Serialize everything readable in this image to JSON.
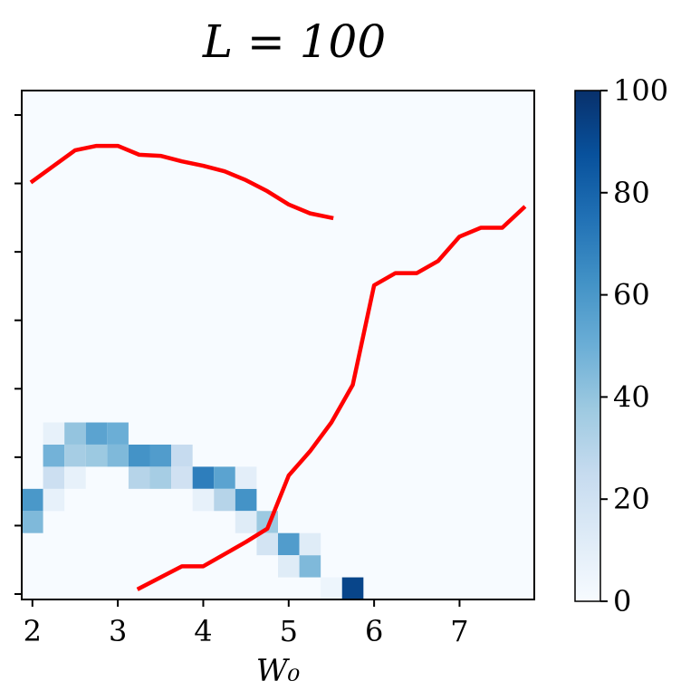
{
  "chart_data": {
    "type": "heatmap",
    "title": "L = 100",
    "xlabel": "W₀",
    "ylabel": "",
    "x_ticks": [
      2,
      3,
      4,
      5,
      6,
      7
    ],
    "x_tick_labels": [
      "2",
      "3",
      "4",
      "5",
      "6",
      "7"
    ],
    "xlim": [
      1.875,
      7.875
    ],
    "y_tick_count": 8,
    "grid_x": [
      2.0,
      2.25,
      2.5,
      2.75,
      3.0,
      3.25,
      3.5,
      3.75,
      4.0,
      4.25,
      4.5,
      4.75,
      5.0,
      5.25,
      5.5,
      5.75,
      6.0,
      6.25,
      6.5,
      6.75,
      7.0,
      7.25,
      7.5,
      7.75
    ],
    "grid_rows": 23,
    "colorbar": {
      "range": [
        0,
        100
      ],
      "ticks": [
        0,
        20,
        40,
        60,
        80,
        100
      ],
      "tick_labels": [
        "0",
        "20",
        "40",
        "60",
        "80",
        "100"
      ],
      "colormap": "Blues"
    },
    "cells": [
      {
        "x": 2.0,
        "row": 3,
        "value": 45
      },
      {
        "x": 2.0,
        "row": 4,
        "value": 60
      },
      {
        "x": 2.25,
        "row": 4,
        "value": 8
      },
      {
        "x": 2.25,
        "row": 5,
        "value": 22
      },
      {
        "x": 2.25,
        "row": 6,
        "value": 48
      },
      {
        "x": 2.25,
        "row": 7,
        "value": 8
      },
      {
        "x": 2.5,
        "row": 6,
        "value": 35
      },
      {
        "x": 2.5,
        "row": 7,
        "value": 40
      },
      {
        "x": 2.5,
        "row": 5,
        "value": 8
      },
      {
        "x": 2.75,
        "row": 7,
        "value": 55
      },
      {
        "x": 2.75,
        "row": 6,
        "value": 38
      },
      {
        "x": 3.0,
        "row": 7,
        "value": 50
      },
      {
        "x": 3.0,
        "row": 6,
        "value": 45
      },
      {
        "x": 3.25,
        "row": 6,
        "value": 62
      },
      {
        "x": 3.25,
        "row": 5,
        "value": 30
      },
      {
        "x": 3.5,
        "row": 6,
        "value": 58
      },
      {
        "x": 3.5,
        "row": 5,
        "value": 35
      },
      {
        "x": 3.75,
        "row": 6,
        "value": 25
      },
      {
        "x": 3.75,
        "row": 5,
        "value": 20
      },
      {
        "x": 4.0,
        "row": 5,
        "value": 70
      },
      {
        "x": 4.0,
        "row": 4,
        "value": 8
      },
      {
        "x": 4.25,
        "row": 5,
        "value": 55
      },
      {
        "x": 4.25,
        "row": 4,
        "value": 30
      },
      {
        "x": 4.5,
        "row": 4,
        "value": 62
      },
      {
        "x": 4.5,
        "row": 5,
        "value": 10
      },
      {
        "x": 4.5,
        "row": 3,
        "value": 12
      },
      {
        "x": 4.75,
        "row": 3,
        "value": 38
      },
      {
        "x": 4.75,
        "row": 2,
        "value": 18
      },
      {
        "x": 5.0,
        "row": 2,
        "value": 58
      },
      {
        "x": 5.0,
        "row": 1,
        "value": 12
      },
      {
        "x": 5.25,
        "row": 1,
        "value": 45
      },
      {
        "x": 5.25,
        "row": 2,
        "value": 12
      },
      {
        "x": 5.5,
        "row": 0,
        "value": 5
      },
      {
        "x": 5.75,
        "row": 0,
        "value": 92
      }
    ],
    "series": [
      {
        "x": [
          2.0,
          2.25,
          2.5,
          2.75,
          3.0,
          3.25,
          3.5,
          3.75,
          4.0,
          4.25,
          4.5,
          4.75,
          5.0,
          5.25,
          5.5
        ],
        "y": [
          18.9,
          19.6,
          20.3,
          20.5,
          20.5,
          20.1,
          20.05,
          19.8,
          19.6,
          19.35,
          18.95,
          18.45,
          17.85,
          17.45,
          17.25
        ],
        "color": "#ff0000"
      },
      {
        "x": [
          3.25,
          3.75,
          4.0,
          4.5,
          4.75,
          5.0,
          5.25,
          5.5,
          5.75,
          6.0,
          6.25,
          6.5,
          6.75,
          7.0,
          7.25,
          7.5,
          7.75
        ],
        "y": [
          0.5,
          1.5,
          1.5,
          2.6,
          3.2,
          5.6,
          6.7,
          8.0,
          9.7,
          14.2,
          14.75,
          14.75,
          15.3,
          16.4,
          16.8,
          16.8,
          17.7
        ],
        "color": "#ff0000"
      }
    ]
  }
}
